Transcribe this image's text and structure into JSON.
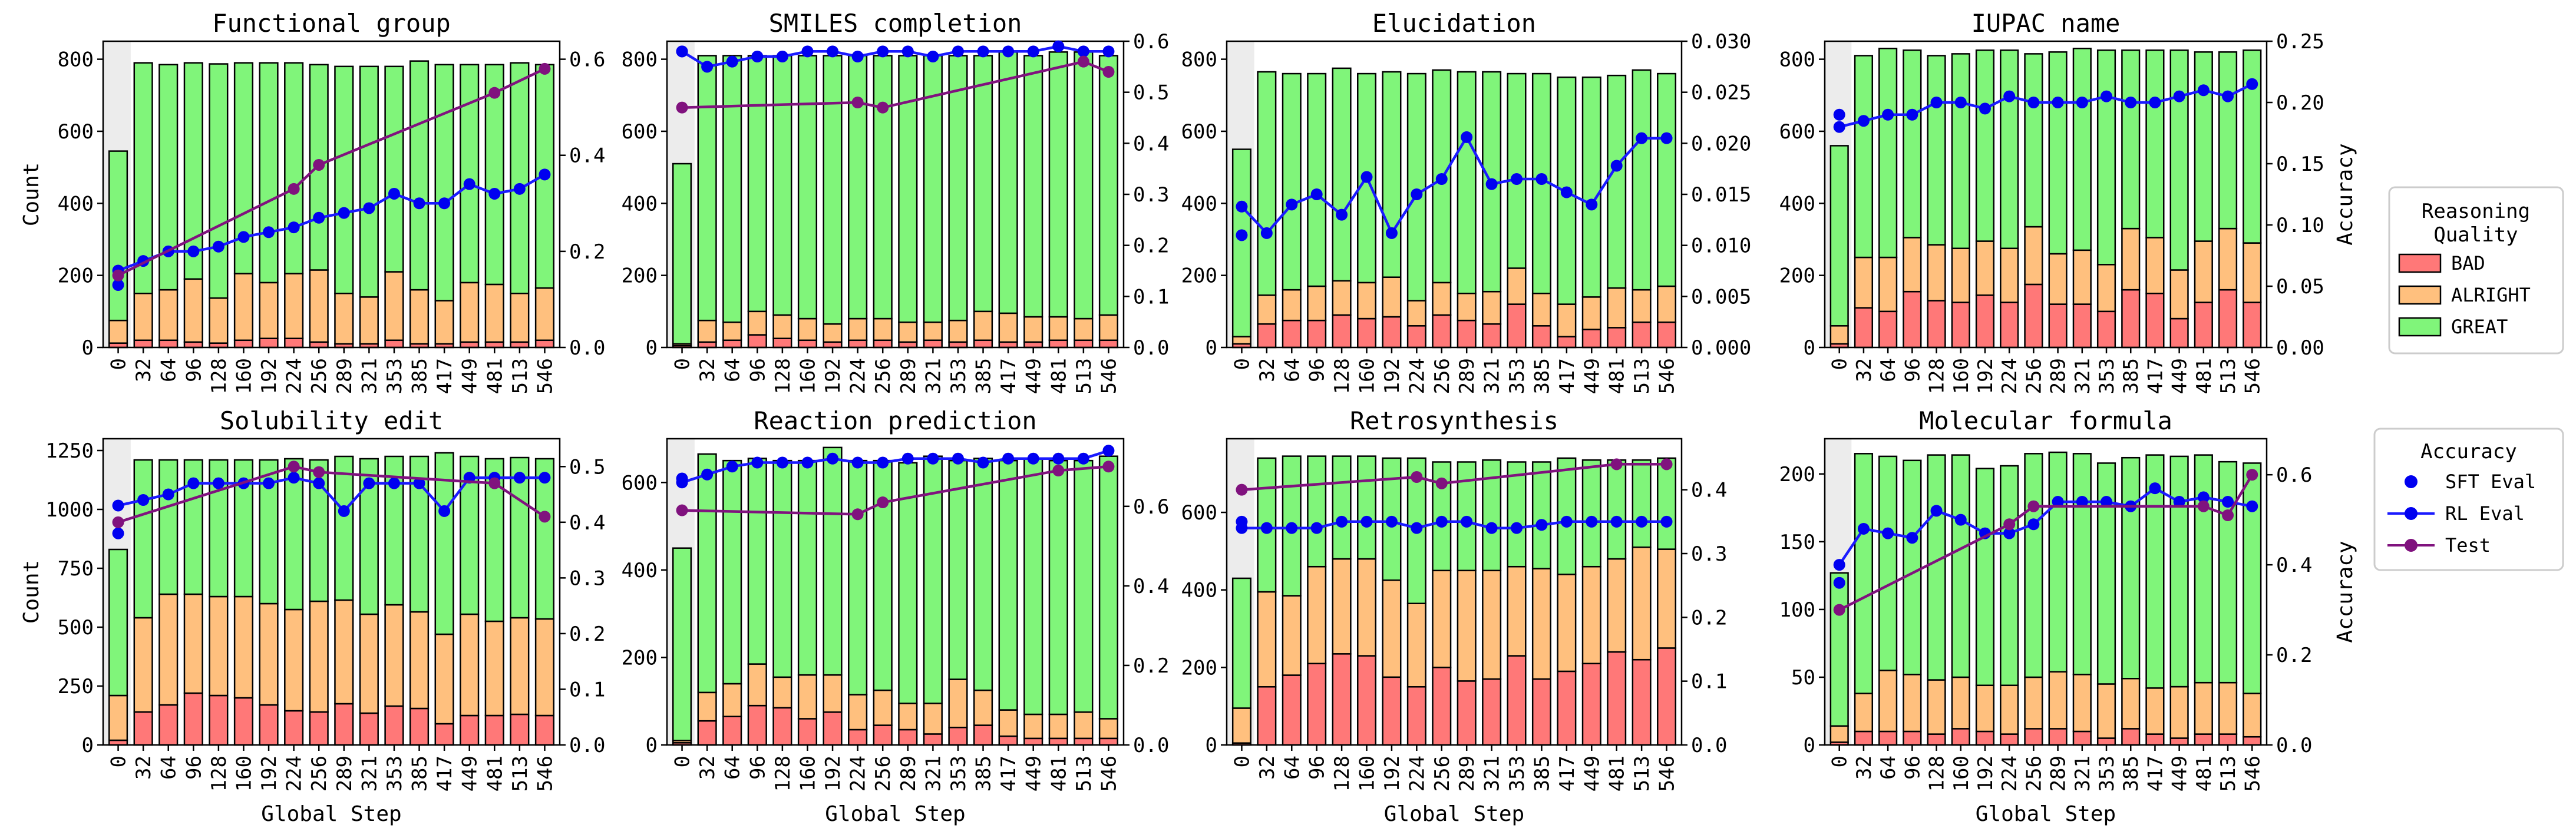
{
  "figure": {
    "x_label": "Global Step",
    "y_label_left": "Count",
    "y_label_right": "Accuracy"
  },
  "colors": {
    "bad": "#ff7878",
    "alright": "#ffc07e",
    "great": "#80f57a",
    "sft": "#0000f0",
    "rl": "#1a1aff",
    "test": "#80127e",
    "shade": "#ececec"
  },
  "legend_quality": {
    "title_line1": "Reasoning",
    "title_line2": "Quality",
    "items": [
      {
        "key": "bad",
        "label": "BAD"
      },
      {
        "key": "alright",
        "label": "ALRIGHT"
      },
      {
        "key": "great",
        "label": "GREAT"
      }
    ]
  },
  "legend_accuracy": {
    "title": "Accuracy",
    "items": [
      {
        "key": "sft",
        "label": "SFT Eval"
      },
      {
        "key": "rl",
        "label": "RL Eval"
      },
      {
        "key": "test",
        "label": "Test"
      }
    ]
  },
  "chart_data": [
    {
      "type": "bar",
      "title": "Functional group",
      "categories": [
        "0",
        "32",
        "64",
        "96",
        "128",
        "160",
        "192",
        "224",
        "256",
        "289",
        "321",
        "353",
        "385",
        "417",
        "449",
        "481",
        "513",
        "546"
      ],
      "ylim": [
        0,
        850
      ],
      "yticks": [
        0,
        200,
        400,
        600,
        800
      ],
      "y2lim": [
        0,
        0.6375
      ],
      "y2ticks": [
        "0.0",
        "0.2",
        "0.4",
        "0.6"
      ],
      "series": [
        {
          "name": "BAD",
          "values": [
            12,
            20,
            20,
            15,
            12,
            20,
            25,
            25,
            15,
            10,
            10,
            20,
            10,
            10,
            15,
            15,
            15,
            20
          ]
        },
        {
          "name": "ALRIGHT",
          "values": [
            63,
            130,
            140,
            175,
            125,
            185,
            155,
            180,
            200,
            140,
            130,
            190,
            150,
            120,
            165,
            160,
            135,
            145
          ]
        },
        {
          "name": "GREAT",
          "values": [
            470,
            640,
            625,
            600,
            650,
            585,
            610,
            585,
            570,
            630,
            640,
            570,
            635,
            655,
            605,
            610,
            640,
            620
          ]
        }
      ],
      "sft_eval": 0.13,
      "rl_eval": [
        0.16,
        0.18,
        0.2,
        0.2,
        0.21,
        0.23,
        0.24,
        0.25,
        0.27,
        0.28,
        0.29,
        0.32,
        0.3,
        0.3,
        0.34,
        0.32,
        0.33,
        0.36
      ],
      "test": {
        "x": [
          "0",
          "224",
          "256",
          "481",
          "546"
        ],
        "y": [
          0.15,
          0.33,
          0.38,
          0.53,
          0.58
        ]
      }
    },
    {
      "type": "bar",
      "title": "SMILES completion",
      "categories": [
        "0",
        "32",
        "64",
        "96",
        "128",
        "160",
        "192",
        "224",
        "256",
        "289",
        "321",
        "353",
        "385",
        "417",
        "449",
        "481",
        "513",
        "546"
      ],
      "ylim": [
        0,
        850
      ],
      "yticks": [
        0,
        200,
        400,
        600,
        800
      ],
      "y2lim": [
        0,
        0.6
      ],
      "y2ticks": [
        "0.0",
        "0.1",
        "0.2",
        "0.3",
        "0.4",
        "0.5",
        "0.6"
      ],
      "series": [
        {
          "name": "BAD",
          "values": [
            5,
            15,
            20,
            35,
            25,
            20,
            15,
            20,
            20,
            15,
            20,
            15,
            20,
            15,
            15,
            20,
            20,
            20
          ]
        },
        {
          "name": "ALRIGHT",
          "values": [
            5,
            60,
            50,
            65,
            65,
            60,
            50,
            60,
            60,
            55,
            50,
            60,
            80,
            80,
            70,
            65,
            60,
            70
          ]
        },
        {
          "name": "GREAT",
          "values": [
            500,
            735,
            740,
            710,
            720,
            730,
            745,
            730,
            730,
            740,
            740,
            735,
            710,
            725,
            725,
            735,
            740,
            720
          ]
        }
      ],
      "sft_eval": 0.58,
      "rl_eval": [
        0.58,
        0.55,
        0.56,
        0.57,
        0.57,
        0.58,
        0.58,
        0.57,
        0.58,
        0.58,
        0.57,
        0.58,
        0.58,
        0.58,
        0.58,
        0.59,
        0.58,
        0.58
      ],
      "test": {
        "x": [
          "0",
          "224",
          "256",
          "513",
          "546"
        ],
        "y": [
          0.47,
          0.48,
          0.47,
          0.56,
          0.54
        ]
      }
    },
    {
      "type": "bar",
      "title": "Elucidation",
      "categories": [
        "0",
        "32",
        "64",
        "96",
        "128",
        "160",
        "192",
        "224",
        "256",
        "289",
        "321",
        "353",
        "385",
        "417",
        "449",
        "481",
        "513",
        "546"
      ],
      "ylim": [
        0,
        850
      ],
      "yticks": [
        0,
        200,
        400,
        600,
        800
      ],
      "y2lim": [
        0,
        0.03
      ],
      "y2ticks": [
        "0.000",
        "0.005",
        "0.010",
        "0.015",
        "0.020",
        "0.025",
        "0.030"
      ],
      "series": [
        {
          "name": "BAD",
          "values": [
            10,
            65,
            75,
            75,
            90,
            80,
            85,
            60,
            90,
            75,
            65,
            120,
            60,
            30,
            50,
            55,
            70,
            70
          ]
        },
        {
          "name": "ALRIGHT",
          "values": [
            20,
            80,
            85,
            95,
            95,
            100,
            110,
            70,
            90,
            75,
            90,
            100,
            90,
            90,
            90,
            110,
            90,
            100
          ]
        },
        {
          "name": "GREAT",
          "values": [
            520,
            620,
            600,
            590,
            590,
            580,
            570,
            630,
            590,
            615,
            610,
            540,
            610,
            630,
            610,
            590,
            610,
            590
          ]
        }
      ],
      "sft_eval": 0.011,
      "rl_eval": [
        0.0138,
        0.0112,
        0.014,
        0.015,
        0.013,
        0.0167,
        0.0112,
        0.015,
        0.0165,
        0.0206,
        0.016,
        0.0165,
        0.0165,
        0.0152,
        0.014,
        0.0178,
        0.0205,
        0.0205
      ],
      "test": null
    },
    {
      "type": "bar",
      "title": "IUPAC name",
      "categories": [
        "0",
        "32",
        "64",
        "96",
        "128",
        "160",
        "192",
        "224",
        "256",
        "289",
        "321",
        "353",
        "385",
        "417",
        "449",
        "481",
        "513",
        "546"
      ],
      "ylim": [
        0,
        850
      ],
      "yticks": [
        0,
        200,
        400,
        600,
        800
      ],
      "y2lim": [
        0,
        0.25
      ],
      "y2ticks": [
        "0.00",
        "0.05",
        "0.10",
        "0.15",
        "0.20",
        "0.25"
      ],
      "series": [
        {
          "name": "BAD",
          "values": [
            10,
            110,
            100,
            155,
            130,
            125,
            145,
            125,
            175,
            120,
            120,
            100,
            160,
            150,
            80,
            125,
            160,
            125
          ]
        },
        {
          "name": "ALRIGHT",
          "values": [
            50,
            140,
            150,
            150,
            155,
            150,
            150,
            150,
            160,
            140,
            150,
            130,
            170,
            155,
            135,
            170,
            170,
            165
          ]
        },
        {
          "name": "GREAT",
          "values": [
            500,
            560,
            580,
            520,
            525,
            540,
            530,
            550,
            480,
            560,
            560,
            595,
            495,
            520,
            610,
            525,
            490,
            535
          ]
        }
      ],
      "sft_eval": 0.19,
      "rl_eval": [
        0.18,
        0.185,
        0.19,
        0.19,
        0.2,
        0.2,
        0.195,
        0.205,
        0.2,
        0.2,
        0.2,
        0.205,
        0.2,
        0.2,
        0.205,
        0.21,
        0.205,
        0.215
      ],
      "test": null
    },
    {
      "type": "bar",
      "title": "Solubility edit",
      "categories": [
        "0",
        "32",
        "64",
        "96",
        "128",
        "160",
        "192",
        "224",
        "256",
        "289",
        "321",
        "353",
        "385",
        "417",
        "449",
        "481",
        "513",
        "546"
      ],
      "ylim": [
        0,
        1300
      ],
      "yticks": [
        0,
        250,
        500,
        750,
        1000,
        1250
      ],
      "y2lim": [
        0,
        0.55
      ],
      "y2ticks": [
        "0.0",
        "0.1",
        "0.2",
        "0.3",
        "0.4",
        "0.5"
      ],
      "series": [
        {
          "name": "BAD",
          "values": [
            20,
            140,
            170,
            220,
            210,
            200,
            170,
            145,
            140,
            175,
            135,
            165,
            155,
            90,
            125,
            125,
            130,
            125
          ]
        },
        {
          "name": "ALRIGHT",
          "values": [
            190,
            400,
            470,
            420,
            420,
            430,
            430,
            430,
            470,
            440,
            420,
            430,
            410,
            380,
            430,
            400,
            410,
            410
          ]
        },
        {
          "name": "GREAT",
          "values": [
            620,
            670,
            570,
            570,
            580,
            580,
            610,
            640,
            600,
            610,
            660,
            630,
            660,
            770,
            670,
            690,
            680,
            680
          ]
        }
      ],
      "sft_eval": 0.38,
      "rl_eval": [
        0.43,
        0.44,
        0.45,
        0.47,
        0.47,
        0.47,
        0.47,
        0.48,
        0.47,
        0.42,
        0.47,
        0.47,
        0.47,
        0.42,
        0.48,
        0.48,
        0.48,
        0.48
      ],
      "test": {
        "x": [
          "0",
          "224",
          "256",
          "481",
          "546"
        ],
        "y": [
          0.4,
          0.5,
          0.49,
          0.47,
          0.41
        ]
      }
    },
    {
      "type": "bar",
      "title": "Reaction prediction",
      "categories": [
        "0",
        "32",
        "64",
        "96",
        "128",
        "160",
        "192",
        "224",
        "256",
        "289",
        "321",
        "353",
        "385",
        "417",
        "449",
        "481",
        "513",
        "546"
      ],
      "ylim": [
        0,
        700
      ],
      "yticks": [
        0,
        200,
        400,
        600
      ],
      "y2lim": [
        0,
        0.77
      ],
      "y2ticks": [
        "0.0",
        "0.2",
        "0.4",
        "0.6"
      ],
      "series": [
        {
          "name": "BAD",
          "values": [
            5,
            55,
            65,
            90,
            85,
            60,
            75,
            35,
            45,
            35,
            25,
            40,
            45,
            20,
            15,
            15,
            15,
            15
          ]
        },
        {
          "name": "ALRIGHT",
          "values": [
            5,
            65,
            75,
            95,
            70,
            100,
            85,
            80,
            80,
            60,
            70,
            110,
            80,
            60,
            55,
            55,
            60,
            45
          ]
        },
        {
          "name": "GREAT",
          "values": [
            440,
            545,
            510,
            470,
            495,
            490,
            520,
            535,
            525,
            550,
            565,
            500,
            530,
            570,
            585,
            580,
            575,
            600
          ]
        }
      ],
      "sft_eval": 0.67,
      "rl_eval": [
        0.66,
        0.68,
        0.7,
        0.71,
        0.71,
        0.71,
        0.72,
        0.71,
        0.71,
        0.72,
        0.72,
        0.72,
        0.71,
        0.72,
        0.72,
        0.72,
        0.72,
        0.74
      ],
      "test": {
        "x": [
          "0",
          "224",
          "256",
          "481",
          "546"
        ],
        "y": [
          0.59,
          0.58,
          0.61,
          0.69,
          0.7
        ]
      }
    },
    {
      "type": "bar",
      "title": "Retrosynthesis",
      "categories": [
        "0",
        "32",
        "64",
        "96",
        "128",
        "160",
        "192",
        "224",
        "256",
        "289",
        "321",
        "353",
        "385",
        "417",
        "449",
        "481",
        "513",
        "546"
      ],
      "ylim": [
        0,
        790
      ],
      "yticks": [
        0,
        200,
        400,
        600
      ],
      "y2lim": [
        0,
        0.48
      ],
      "y2ticks": [
        "0.0",
        "0.1",
        "0.2",
        "0.3",
        "0.4"
      ],
      "series": [
        {
          "name": "BAD",
          "values": [
            5,
            150,
            180,
            210,
            235,
            230,
            175,
            150,
            200,
            165,
            170,
            230,
            170,
            190,
            210,
            240,
            220,
            250
          ]
        },
        {
          "name": "ALRIGHT",
          "values": [
            90,
            245,
            205,
            250,
            245,
            250,
            250,
            215,
            250,
            285,
            280,
            230,
            285,
            250,
            250,
            240,
            290,
            255
          ]
        },
        {
          "name": "GREAT",
          "values": [
            335,
            345,
            360,
            285,
            265,
            265,
            315,
            375,
            280,
            280,
            285,
            270,
            275,
            300,
            275,
            255,
            225,
            235
          ]
        }
      ],
      "sft_eval": 0.35,
      "rl_eval": [
        0.34,
        0.34,
        0.34,
        0.34,
        0.35,
        0.35,
        0.35,
        0.34,
        0.35,
        0.35,
        0.34,
        0.34,
        0.345,
        0.35,
        0.35,
        0.35,
        0.35,
        0.35
      ],
      "test": {
        "x": [
          "0",
          "224",
          "256",
          "481",
          "546"
        ],
        "y": [
          0.4,
          0.42,
          0.41,
          0.44,
          0.44
        ]
      }
    },
    {
      "type": "bar",
      "title": "Molecular formula",
      "categories": [
        "0",
        "32",
        "64",
        "96",
        "128",
        "160",
        "192",
        "224",
        "256",
        "289",
        "321",
        "353",
        "385",
        "417",
        "449",
        "481",
        "513",
        "546"
      ],
      "ylim": [
        0,
        226
      ],
      "yticks": [
        0,
        50,
        100,
        150,
        200
      ],
      "y2lim": [
        0,
        0.68
      ],
      "y2ticks": [
        "0.0",
        "0.2",
        "0.4",
        "0.6"
      ],
      "series": [
        {
          "name": "BAD",
          "values": [
            2,
            10,
            10,
            10,
            8,
            12,
            10,
            8,
            12,
            12,
            10,
            5,
            12,
            8,
            5,
            8,
            8,
            6
          ]
        },
        {
          "name": "ALRIGHT",
          "values": [
            12,
            28,
            45,
            42,
            40,
            38,
            34,
            36,
            38,
            42,
            42,
            40,
            37,
            34,
            38,
            38,
            38,
            32
          ]
        },
        {
          "name": "GREAT",
          "values": [
            113,
            177,
            158,
            158,
            166,
            164,
            160,
            162,
            165,
            162,
            163,
            163,
            163,
            172,
            170,
            168,
            163,
            170
          ]
        }
      ],
      "sft_eval": 0.36,
      "rl_eval": [
        0.4,
        0.48,
        0.47,
        0.46,
        0.52,
        0.5,
        0.47,
        0.47,
        0.49,
        0.54,
        0.54,
        0.54,
        0.53,
        0.57,
        0.54,
        0.55,
        0.54,
        0.53
      ],
      "test": {
        "x": [
          "0",
          "224",
          "256",
          "481",
          "513",
          "546"
        ],
        "y": [
          0.3,
          0.49,
          0.53,
          0.53,
          0.51,
          0.6
        ]
      }
    }
  ]
}
